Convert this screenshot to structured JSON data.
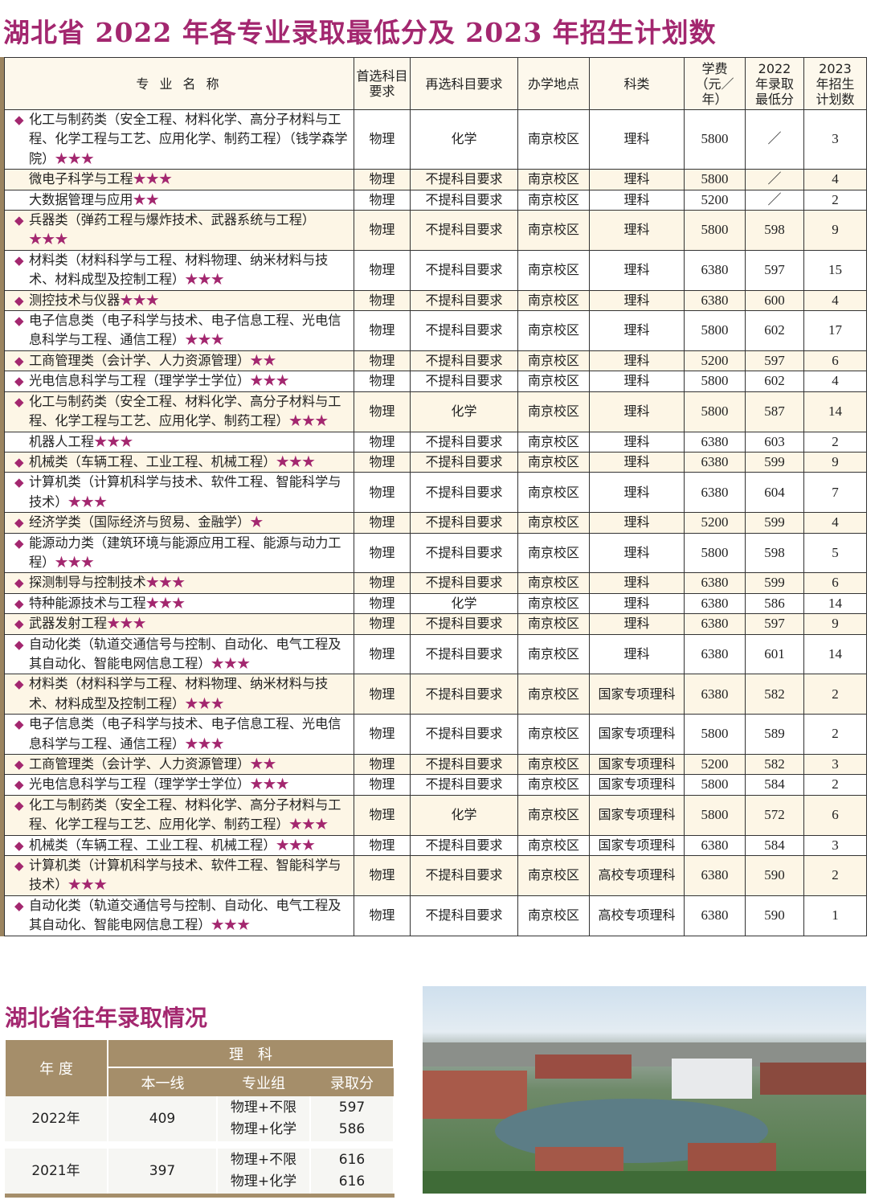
{
  "title": "湖北省 2022 年各专业录取最低分及 2023 年招生计划数",
  "headers": [
    "专 业 名 称",
    "首选科目要求",
    "再选科目要求",
    "办学地点",
    "科类",
    "学费（元／年）",
    "2022 年录取最低分",
    "2023 年招生计划数"
  ],
  "rows": [
    {
      "d": true,
      "name": "化工与制药类（安全工程、材料化学、高分子材料与工程、化学工程与工艺、应用化学、制药工程）（钱学森学院）",
      "stars": "★★★",
      "c": [
        "物理",
        "化学",
        "南京校区",
        "理科",
        "5800",
        "／",
        "3"
      ]
    },
    {
      "d": false,
      "name": "微电子科学与工程",
      "stars": "★★★",
      "c": [
        "物理",
        "不提科目要求",
        "南京校区",
        "理科",
        "5800",
        "／",
        "4"
      ]
    },
    {
      "d": false,
      "name": "大数据管理与应用",
      "stars": "★★",
      "c": [
        "物理",
        "不提科目要求",
        "南京校区",
        "理科",
        "5200",
        "／",
        "2"
      ]
    },
    {
      "d": true,
      "name": "兵器类（弹药工程与爆炸技术、武器系统与工程）",
      "stars": "★★★",
      "c": [
        "物理",
        "不提科目要求",
        "南京校区",
        "理科",
        "5800",
        "598",
        "9"
      ]
    },
    {
      "d": true,
      "name": "材料类（材料科学与工程、材料物理、纳米材料与技术、材料成型及控制工程）",
      "stars": "★★★",
      "c": [
        "物理",
        "不提科目要求",
        "南京校区",
        "理科",
        "6380",
        "597",
        "15"
      ]
    },
    {
      "d": true,
      "name": "测控技术与仪器",
      "stars": "★★★",
      "c": [
        "物理",
        "不提科目要求",
        "南京校区",
        "理科",
        "6380",
        "600",
        "4"
      ]
    },
    {
      "d": true,
      "name": "电子信息类（电子科学与技术、电子信息工程、光电信息科学与工程、通信工程）",
      "stars": "★★★",
      "c": [
        "物理",
        "不提科目要求",
        "南京校区",
        "理科",
        "5800",
        "602",
        "17"
      ]
    },
    {
      "d": true,
      "name": "工商管理类（会计学、人力资源管理）",
      "stars": "★★",
      "c": [
        "物理",
        "不提科目要求",
        "南京校区",
        "理科",
        "5200",
        "597",
        "6"
      ]
    },
    {
      "d": true,
      "name": "光电信息科学与工程（理学学士学位）",
      "stars": "★★★",
      "c": [
        "物理",
        "不提科目要求",
        "南京校区",
        "理科",
        "5800",
        "602",
        "4"
      ]
    },
    {
      "d": true,
      "name": "化工与制药类（安全工程、材料化学、高分子材料与工程、化学工程与工艺、应用化学、制药工程）",
      "stars": "★★★",
      "c": [
        "物理",
        "化学",
        "南京校区",
        "理科",
        "5800",
        "587",
        "14"
      ]
    },
    {
      "d": false,
      "name": "机器人工程",
      "stars": "★★★",
      "c": [
        "物理",
        "不提科目要求",
        "南京校区",
        "理科",
        "6380",
        "603",
        "2"
      ]
    },
    {
      "d": true,
      "name": "机械类（车辆工程、工业工程、机械工程）",
      "stars": "★★★",
      "c": [
        "物理",
        "不提科目要求",
        "南京校区",
        "理科",
        "6380",
        "599",
        "9"
      ]
    },
    {
      "d": true,
      "name": "计算机类（计算机科学与技术、软件工程、智能科学与技术）",
      "stars": "★★★",
      "c": [
        "物理",
        "不提科目要求",
        "南京校区",
        "理科",
        "6380",
        "604",
        "7"
      ]
    },
    {
      "d": true,
      "name": "经济学类（国际经济与贸易、金融学）",
      "stars": "★",
      "c": [
        "物理",
        "不提科目要求",
        "南京校区",
        "理科",
        "5200",
        "599",
        "4"
      ]
    },
    {
      "d": true,
      "name": "能源动力类（建筑环境与能源应用工程、能源与动力工程）",
      "stars": "★★★",
      "c": [
        "物理",
        "不提科目要求",
        "南京校区",
        "理科",
        "5800",
        "598",
        "5"
      ]
    },
    {
      "d": true,
      "name": "探测制导与控制技术",
      "stars": "★★★",
      "c": [
        "物理",
        "不提科目要求",
        "南京校区",
        "理科",
        "6380",
        "599",
        "6"
      ]
    },
    {
      "d": true,
      "name": "特种能源技术与工程",
      "stars": "★★★",
      "c": [
        "物理",
        "化学",
        "南京校区",
        "理科",
        "6380",
        "586",
        "14"
      ]
    },
    {
      "d": true,
      "name": "武器发射工程",
      "stars": "★★★",
      "c": [
        "物理",
        "不提科目要求",
        "南京校区",
        "理科",
        "6380",
        "597",
        "9"
      ]
    },
    {
      "d": true,
      "name": "自动化类（轨道交通信号与控制、自动化、电气工程及其自动化、智能电网信息工程）",
      "stars": "★★★",
      "c": [
        "物理",
        "不提科目要求",
        "南京校区",
        "理科",
        "6380",
        "601",
        "14"
      ]
    },
    {
      "d": true,
      "name": "材料类（材料科学与工程、材料物理、纳米材料与技术、材料成型及控制工程）",
      "stars": "★★★",
      "c": [
        "物理",
        "不提科目要求",
        "南京校区",
        "国家专项理科",
        "6380",
        "582",
        "2"
      ]
    },
    {
      "d": true,
      "name": "电子信息类（电子科学与技术、电子信息工程、光电信息科学与工程、通信工程）",
      "stars": "★★★",
      "c": [
        "物理",
        "不提科目要求",
        "南京校区",
        "国家专项理科",
        "5800",
        "589",
        "2"
      ]
    },
    {
      "d": true,
      "name": "工商管理类（会计学、人力资源管理）",
      "stars": "★★",
      "c": [
        "物理",
        "不提科目要求",
        "南京校区",
        "国家专项理科",
        "5200",
        "582",
        "3"
      ]
    },
    {
      "d": true,
      "name": "光电信息科学与工程（理学学士学位）",
      "stars": "★★★",
      "c": [
        "物理",
        "不提科目要求",
        "南京校区",
        "国家专项理科",
        "5800",
        "584",
        "2"
      ]
    },
    {
      "d": true,
      "name": "化工与制药类（安全工程、材料化学、高分子材料与工程、化学工程与工艺、应用化学、制药工程）",
      "stars": "★★★",
      "c": [
        "物理",
        "化学",
        "南京校区",
        "国家专项理科",
        "5800",
        "572",
        "6"
      ]
    },
    {
      "d": true,
      "name": "机械类（车辆工程、工业工程、机械工程）",
      "stars": "★★★",
      "c": [
        "物理",
        "不提科目要求",
        "南京校区",
        "国家专项理科",
        "6380",
        "584",
        "3"
      ]
    },
    {
      "d": true,
      "name": "计算机类（计算机科学与技术、软件工程、智能科学与技术）",
      "stars": "★★★",
      "c": [
        "物理",
        "不提科目要求",
        "南京校区",
        "高校专项理科",
        "6380",
        "590",
        "2"
      ]
    },
    {
      "d": true,
      "name": "自动化类（轨道交通信号与控制、自动化、电气工程及其自动化、智能电网信息工程）",
      "stars": "★★★",
      "c": [
        "物理",
        "不提科目要求",
        "南京校区",
        "高校专项理科",
        "6380",
        "590",
        "1"
      ]
    }
  ],
  "history": {
    "title": "湖北省往年录取情况",
    "year_header": "年 度",
    "group_header": "理　科",
    "sub_headers": [
      "本一线",
      "专业组",
      "录取分"
    ],
    "rows": [
      {
        "year": "2022年",
        "line": "409",
        "groups": [
          "物理+不限",
          "物理+化学"
        ],
        "scores": [
          "597",
          "586"
        ]
      },
      {
        "year": "2021年",
        "line": "397",
        "groups": [
          "物理+不限",
          "物理+化学"
        ],
        "scores": [
          "616",
          "616"
        ]
      }
    ]
  },
  "colors": {
    "accent": "#a3276f",
    "header_bg": "#a58e6a",
    "row_alt": "#fdf6e6"
  }
}
